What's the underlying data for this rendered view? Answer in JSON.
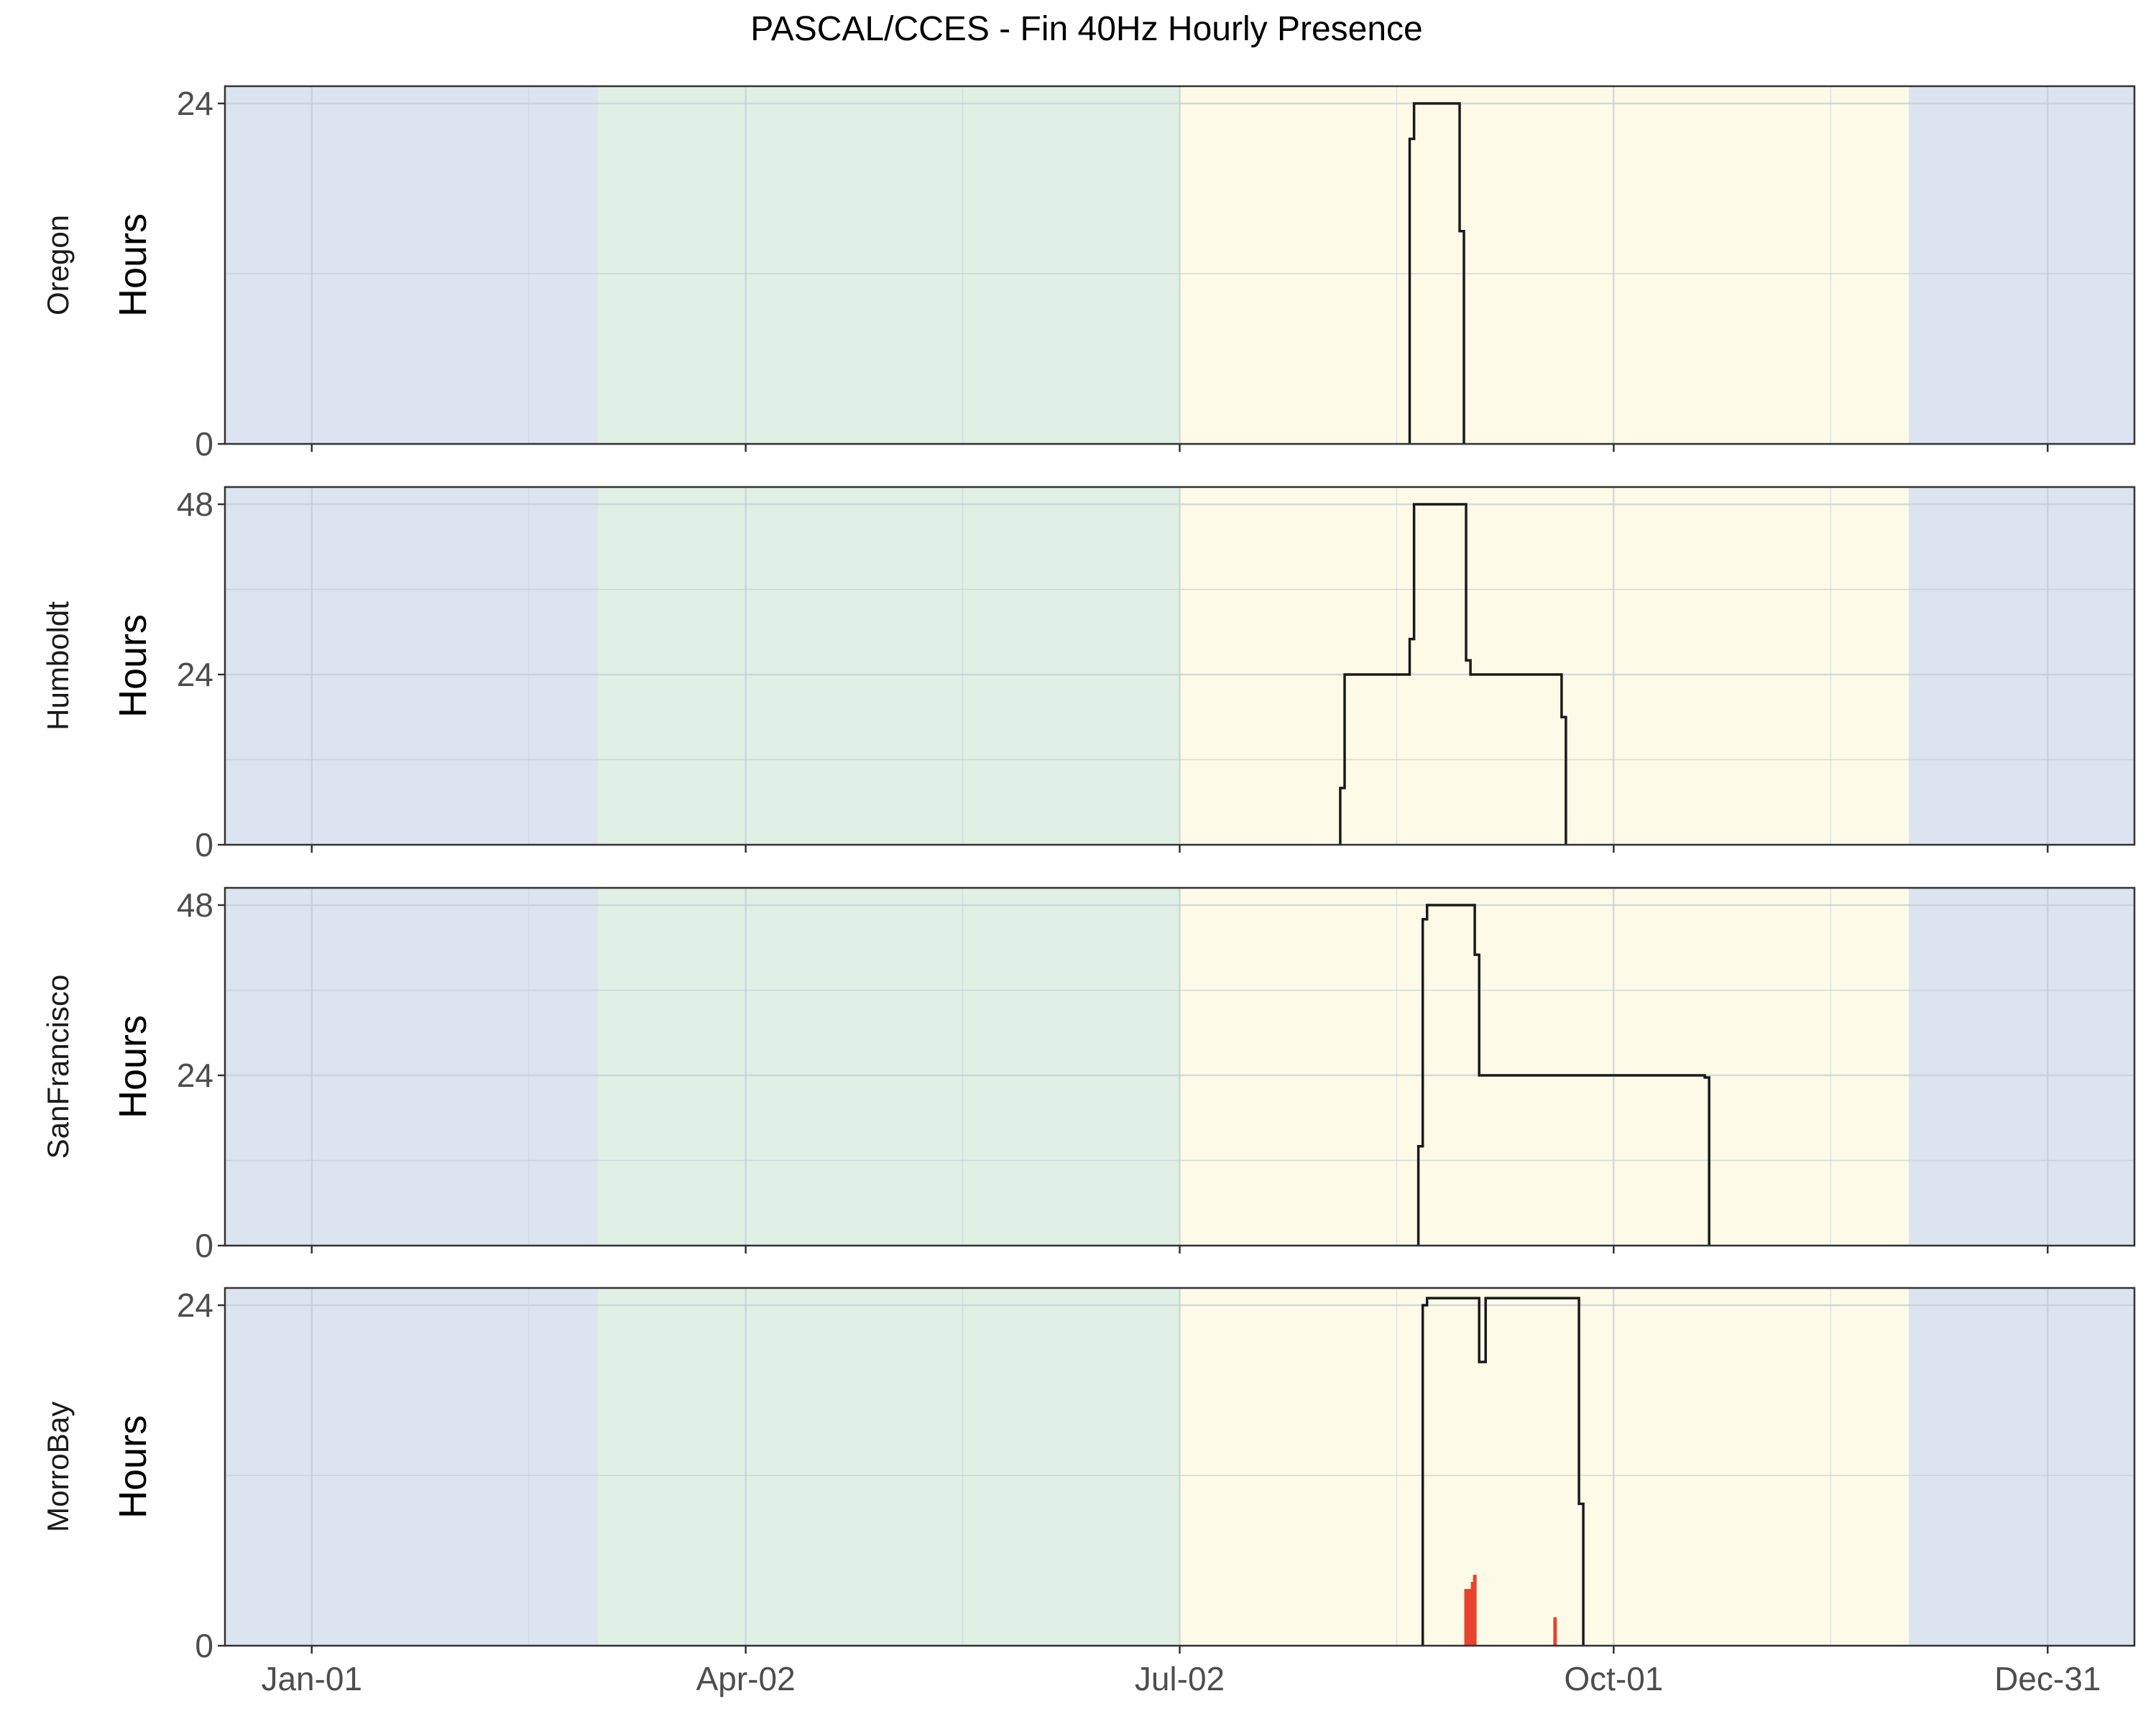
{
  "chart_data": {
    "type": "area",
    "title": "PASCAL/CCES - Fin 40Hz Hourly Presence",
    "xlabel": "",
    "ylabel": "Hours",
    "x_axis": {
      "unit": "day of year",
      "range": [
        -20,
        420
      ],
      "tick_days": [
        0,
        100,
        200,
        300,
        400
      ],
      "tick_labels": [
        "Jan-01",
        "Apr-02",
        "Jul-02",
        "Oct-01",
        "Dec-31"
      ],
      "minor_grid_days": [
        50,
        150,
        250,
        350
      ]
    },
    "season_bands": [
      {
        "from": -20,
        "to": 66,
        "color": "#dce5ef"
      },
      {
        "from": 66,
        "to": 200,
        "color": "#e1f0e5"
      },
      {
        "from": 200,
        "to": 368,
        "color": "#fdfbe8"
      },
      {
        "from": 368,
        "to": 420,
        "color": "#dce5ef"
      }
    ],
    "grid": true,
    "legend": "none",
    "panels": [
      {
        "name": "Oregon",
        "y_ticks": [
          0,
          24
        ],
        "ylim": [
          0,
          25
        ],
        "line_color": "#1a1a1a",
        "steps": [
          [
            253,
            0
          ],
          [
            253,
            21.5
          ],
          [
            254,
            21.5
          ],
          [
            254,
            24
          ],
          [
            264.5,
            24
          ],
          [
            264.5,
            15
          ],
          [
            265.5,
            15
          ],
          [
            265.5,
            0
          ]
        ],
        "bars": []
      },
      {
        "name": "Humboldt",
        "y_ticks": [
          0,
          24,
          48
        ],
        "ylim": [
          0,
          48
        ],
        "line_color": "#1a1a1a",
        "steps": [
          [
            237,
            0
          ],
          [
            237,
            8
          ],
          [
            238,
            8
          ],
          [
            238,
            24
          ],
          [
            253,
            24
          ],
          [
            253,
            29
          ],
          [
            254,
            29
          ],
          [
            254,
            48
          ],
          [
            266,
            48
          ],
          [
            266,
            26
          ],
          [
            267,
            26
          ],
          [
            267,
            24
          ],
          [
            288,
            24
          ],
          [
            288,
            18
          ],
          [
            289,
            18
          ],
          [
            289,
            0
          ]
        ],
        "bars": []
      },
      {
        "name": "SanFrancisco",
        "y_ticks": [
          0,
          24,
          48
        ],
        "ylim": [
          0,
          48
        ],
        "line_color": "#1a1a1a",
        "steps": [
          [
            255,
            0
          ],
          [
            255,
            14
          ],
          [
            256,
            14
          ],
          [
            256,
            46
          ],
          [
            257,
            46
          ],
          [
            257,
            48
          ],
          [
            268,
            48
          ],
          [
            268,
            41
          ],
          [
            269,
            41
          ],
          [
            269,
            24
          ],
          [
            321,
            24
          ],
          [
            321,
            23.7
          ],
          [
            322,
            23.7
          ],
          [
            322,
            0
          ]
        ],
        "bars": []
      },
      {
        "name": "MorroBay",
        "y_ticks": [
          0,
          24
        ],
        "ylim": [
          0,
          25
        ],
        "line_color": "#1a1a1a",
        "steps": [
          [
            256,
            0
          ],
          [
            256,
            24
          ],
          [
            257,
            24
          ],
          [
            257,
            24.5
          ],
          [
            269,
            24.5
          ],
          [
            269,
            20
          ],
          [
            270.5,
            20
          ],
          [
            270.5,
            24.5
          ],
          [
            292,
            24.5
          ],
          [
            292,
            10
          ],
          [
            293,
            10
          ],
          [
            293,
            0
          ]
        ],
        "bars": [
          {
            "x": 266,
            "value": 4,
            "color": "#e8432e"
          },
          {
            "x": 267,
            "value": 4,
            "color": "#e8432e"
          },
          {
            "x": 268,
            "value": 5,
            "color": "#e8432e"
          },
          {
            "x": 266.5,
            "value": 4,
            "color": "#e8432e"
          },
          {
            "x": 267.5,
            "value": 4.5,
            "color": "#e8432e"
          },
          {
            "x": 266,
            "value": 4,
            "color": "#e8432e"
          },
          {
            "x": 286.5,
            "value": 2,
            "color": "#e8432e"
          }
        ]
      }
    ]
  }
}
